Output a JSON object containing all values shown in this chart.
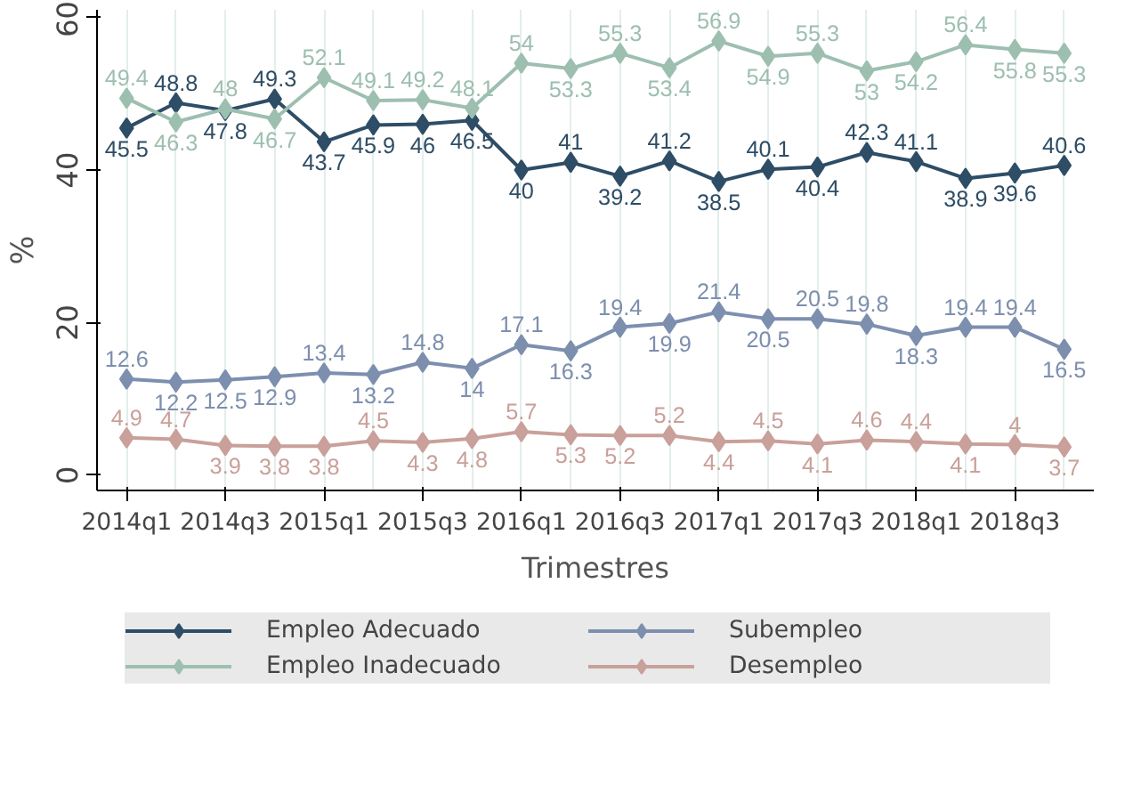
{
  "chart_data": {
    "type": "line",
    "xlabel": "Trimestres",
    "ylabel": "%",
    "categories": [
      "2014q1",
      null,
      "2014q3",
      null,
      "2015q1",
      null,
      "2015q3",
      null,
      "2016q1",
      null,
      "2016q3",
      null,
      "2017q1",
      null,
      "2017q3",
      null,
      "2018q1",
      null,
      "2018q3",
      null
    ],
    "series": [
      {
        "name": "Empleo Adecuado",
        "color": "#2e4d66",
        "values": [
          45.5,
          48.8,
          47.8,
          49.3,
          43.7,
          45.9,
          46,
          46.5,
          40,
          41,
          39.2,
          41.2,
          38.5,
          40.1,
          40.4,
          42.3,
          41.1,
          38.9,
          39.6,
          40.6
        ]
      },
      {
        "name": "Empleo Inadecuado",
        "color": "#9dbfb0",
        "values": [
          49.4,
          46.3,
          48,
          46.7,
          52.1,
          49.1,
          49.2,
          48.1,
          54,
          53.3,
          55.3,
          53.4,
          56.9,
          54.9,
          55.3,
          53,
          54.2,
          56.4,
          55.8,
          55.3
        ]
      },
      {
        "name": "Subempleo",
        "color": "#7d8fae",
        "values": [
          12.6,
          12.2,
          12.5,
          12.9,
          13.4,
          13.2,
          14.8,
          14,
          17.1,
          16.3,
          19.4,
          19.9,
          21.4,
          20.5,
          20.5,
          19.8,
          18.3,
          19.4,
          19.4,
          16.5
        ]
      },
      {
        "name": "Desempleo",
        "color": "#c9a09a",
        "values": [
          4.9,
          4.7,
          3.9,
          3.8,
          3.8,
          4.5,
          4.3,
          4.8,
          5.7,
          5.3,
          5.2,
          5.2,
          4.4,
          4.5,
          4.1,
          4.6,
          4.4,
          4.1,
          4,
          3.7
        ]
      }
    ],
    "ylim": [
      -2,
      61
    ],
    "yticks": [
      0,
      20,
      40,
      60
    ],
    "grid": "x",
    "legend": "bottom",
    "marker": "diamond",
    "line_style": "solid",
    "data_labels": true
  }
}
